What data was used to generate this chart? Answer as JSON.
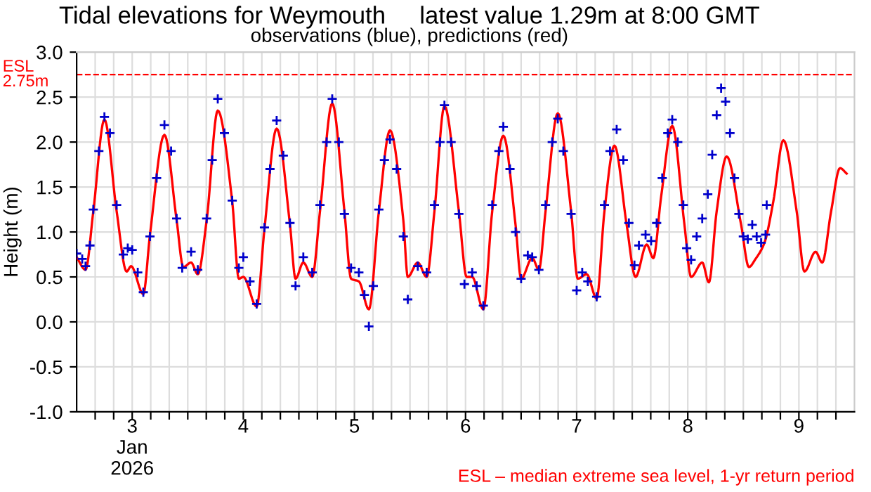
{
  "chart_data": {
    "type": "line",
    "title": "Tidal elevations for Weymouth     latest value 1.29m at 8:00 GMT",
    "subtitle": "observations (blue), predictions (red)",
    "ylabel": "Height (m)",
    "xlim": [
      3,
      10
    ],
    "xticks": [
      {
        "value": 3.1667,
        "label": null
      },
      {
        "value": 3.3333,
        "label": null
      },
      {
        "value": 3.5,
        "label": null
      },
      {
        "value": 3.6667,
        "label": null
      },
      {
        "value": 3.8333,
        "label": null
      },
      {
        "value": 4,
        "label": null
      },
      {
        "value": 4.1667,
        "label": null
      },
      {
        "value": 4.3333,
        "label": null
      },
      {
        "value": 4.5,
        "label": null
      },
      {
        "value": 4.6667,
        "label": null
      },
      {
        "value": 4.8333,
        "label": null
      },
      {
        "value": 5,
        "label": null
      },
      {
        "value": 5.1667,
        "label": null
      },
      {
        "value": 5.3333,
        "label": null
      },
      {
        "value": 5.5,
        "label": null
      },
      {
        "value": 5.6667,
        "label": null
      },
      {
        "value": 5.8333,
        "label": null
      },
      {
        "value": 6,
        "label": null
      },
      {
        "value": 6.1667,
        "label": null
      },
      {
        "value": 6.3333,
        "label": null
      },
      {
        "value": 6.5,
        "label": null
      },
      {
        "value": 6.6667,
        "label": null
      },
      {
        "value": 6.8333,
        "label": null
      },
      {
        "value": 7,
        "label": null
      },
      {
        "value": 7.1667,
        "label": null
      },
      {
        "value": 7.3333,
        "label": null
      },
      {
        "value": 7.5,
        "label": null
      },
      {
        "value": 7.6667,
        "label": null
      },
      {
        "value": 7.8333,
        "label": null
      },
      {
        "value": 8,
        "label": null
      },
      {
        "value": 8.1667,
        "label": null
      },
      {
        "value": 8.3333,
        "label": null
      },
      {
        "value": 8.5,
        "label": null
      },
      {
        "value": 8.6667,
        "label": null
      },
      {
        "value": 8.8333,
        "label": null
      },
      {
        "value": 9,
        "label": null
      },
      {
        "value": 9.1667,
        "label": null
      },
      {
        "value": 9.3333,
        "label": null
      },
      {
        "value": 9.5,
        "label": null
      },
      {
        "value": 9.6667,
        "label": null
      },
      {
        "value": 9.8333,
        "label": null
      },
      {
        "value": 3.5,
        "label": "3\nJan\n2026"
      },
      {
        "value": 4.5,
        "label": "4"
      },
      {
        "value": 5.5,
        "label": "5"
      },
      {
        "value": 6.5,
        "label": "6"
      },
      {
        "value": 7.5,
        "label": "7"
      },
      {
        "value": 8.5,
        "label": "8"
      },
      {
        "value": 9.5,
        "label": "9"
      }
    ],
    "ylim": [
      -1,
      3
    ],
    "yticks": [
      {
        "value": -1,
        "label": "-1.0"
      },
      {
        "value": -0.5,
        "label": "-0.5"
      },
      {
        "value": 0,
        "label": "0.0"
      },
      {
        "value": 0.5,
        "label": "0.5"
      },
      {
        "value": 1,
        "label": "1.0"
      },
      {
        "value": 1.5,
        "label": "1.5"
      },
      {
        "value": 2,
        "label": "2.0"
      },
      {
        "value": 2.5,
        "label": "2.5"
      },
      {
        "value": 3,
        "label": "3.0"
      }
    ],
    "grid": true,
    "legend": false,
    "series": [
      {
        "color": "#ff0000",
        "line_style": "solid",
        "marker": "none",
        "x": [
          3.0,
          3.08,
          3.15,
          3.25,
          3.36,
          3.45,
          3.49,
          3.6,
          3.66,
          3.79,
          3.9,
          3.96,
          4.03,
          4.09,
          4.17,
          4.27,
          4.4,
          4.46,
          4.5,
          4.62,
          4.69,
          4.8,
          4.92,
          4.97,
          5.04,
          5.12,
          5.19,
          5.3,
          5.41,
          5.47,
          5.54,
          5.63,
          5.72,
          5.82,
          5.94,
          5.98,
          6.07,
          6.15,
          6.22,
          6.31,
          6.44,
          6.51,
          6.56,
          6.66,
          6.74,
          6.84,
          6.95,
          7.0,
          7.1,
          7.16,
          7.22,
          7.33,
          7.45,
          7.51,
          7.59,
          7.68,
          7.75,
          7.84,
          7.95,
          8.03,
          8.13,
          8.19,
          8.26,
          8.36,
          8.47,
          8.53,
          8.63,
          8.69,
          8.76,
          8.85,
          8.98,
          9.05,
          9.11,
          9.19,
          9.27,
          9.36,
          9.48,
          9.55,
          9.65,
          9.71,
          9.79,
          9.87,
          9.93
        ],
        "values": [
          0.72,
          0.58,
          1.23,
          2.25,
          1.23,
          0.56,
          0.62,
          0.31,
          0.97,
          2.08,
          1.13,
          0.61,
          0.66,
          0.53,
          1.13,
          2.35,
          1.34,
          0.48,
          0.5,
          0.17,
          1.03,
          2.15,
          1.08,
          0.48,
          0.66,
          0.5,
          1.23,
          2.43,
          1.23,
          0.48,
          0.45,
          0.14,
          1.23,
          2.13,
          1.13,
          0.5,
          0.66,
          0.5,
          1.23,
          2.4,
          1.23,
          0.5,
          0.5,
          0.14,
          1.23,
          2.07,
          1.08,
          0.48,
          0.71,
          0.58,
          1.23,
          2.32,
          1.23,
          0.48,
          0.53,
          0.26,
          1.23,
          1.96,
          1.08,
          0.5,
          0.86,
          0.71,
          1.39,
          2.18,
          1.08,
          0.5,
          0.66,
          0.44,
          1.23,
          1.84,
          1.08,
          0.61,
          0.7,
          0.88,
          1.34,
          2.02,
          1.23,
          0.56,
          0.78,
          0.66,
          1.23,
          1.71,
          1.65
        ]
      },
      {
        "type": "scatter",
        "color": "#0000cc",
        "marker": "cross",
        "x": [
          3.0,
          3.05,
          3.08,
          3.12,
          3.15,
          3.2,
          3.25,
          3.3,
          3.36,
          3.42,
          3.46,
          3.5,
          3.55,
          3.6,
          3.66,
          3.72,
          3.79,
          3.85,
          3.9,
          3.95,
          4.03,
          4.09,
          4.17,
          4.22,
          4.27,
          4.33,
          4.4,
          4.46,
          4.5,
          4.56,
          4.62,
          4.69,
          4.74,
          4.8,
          4.86,
          4.92,
          4.97,
          5.04,
          5.12,
          5.19,
          5.25,
          5.3,
          5.36,
          5.41,
          5.47,
          5.54,
          5.59,
          5.63,
          5.67,
          5.72,
          5.77,
          5.82,
          5.88,
          5.94,
          5.98,
          6.07,
          6.15,
          6.22,
          6.27,
          6.31,
          6.37,
          6.44,
          6.49,
          6.56,
          6.6,
          6.66,
          6.74,
          6.8,
          6.84,
          6.9,
          6.95,
          7.0,
          7.06,
          7.1,
          7.16,
          7.22,
          7.28,
          7.33,
          7.38,
          7.45,
          7.5,
          7.55,
          7.6,
          7.68,
          7.75,
          7.8,
          7.86,
          7.92,
          7.97,
          8.02,
          8.06,
          8.12,
          8.17,
          8.22,
          8.27,
          8.32,
          8.36,
          8.41,
          8.46,
          8.49,
          8.53,
          8.58,
          8.63,
          8.68,
          8.72,
          8.76,
          8.8,
          8.84,
          8.88,
          8.92,
          8.96,
          9.0,
          9.04,
          9.08,
          9.12,
          9.16,
          9.2,
          9.21
        ],
        "values": [
          0.76,
          0.7,
          0.62,
          0.85,
          1.25,
          1.9,
          2.28,
          2.1,
          1.3,
          0.75,
          0.82,
          0.8,
          0.55,
          0.33,
          0.95,
          1.6,
          2.19,
          1.9,
          1.15,
          0.6,
          0.78,
          0.58,
          1.15,
          1.8,
          2.48,
          2.1,
          1.35,
          0.6,
          0.72,
          0.45,
          0.2,
          1.05,
          1.7,
          2.24,
          1.85,
          1.1,
          0.4,
          0.72,
          0.55,
          1.3,
          2.0,
          2.48,
          2.0,
          1.2,
          0.6,
          0.55,
          0.3,
          -0.05,
          0.4,
          1.25,
          1.8,
          2.03,
          1.7,
          0.95,
          0.25,
          0.62,
          0.55,
          1.3,
          2.0,
          2.41,
          2.0,
          1.2,
          0.42,
          0.55,
          0.4,
          0.18,
          1.3,
          1.9,
          2.17,
          1.7,
          1.0,
          0.48,
          0.74,
          0.72,
          0.58,
          1.3,
          2.0,
          2.26,
          1.9,
          1.2,
          0.35,
          0.55,
          0.45,
          0.28,
          1.3,
          1.9,
          2.14,
          1.8,
          1.1,
          0.63,
          0.85,
          0.97,
          0.9,
          1.1,
          1.6,
          2.1,
          2.25,
          2.0,
          1.3,
          0.82,
          0.69,
          0.95,
          1.15,
          1.42,
          1.86,
          2.3,
          2.6,
          2.45,
          2.1,
          1.6,
          1.2,
          0.95,
          0.92,
          1.08,
          0.95,
          0.88,
          0.97,
          1.3
        ]
      }
    ],
    "ref_lines": [
      {
        "axis": "y",
        "value": 2.75,
        "label": "ESL\n2.75m",
        "color": "#ff0000",
        "line_style": "dashed"
      }
    ],
    "annotations": [
      "ESL – median extreme sea level, 1-yr return period"
    ]
  }
}
